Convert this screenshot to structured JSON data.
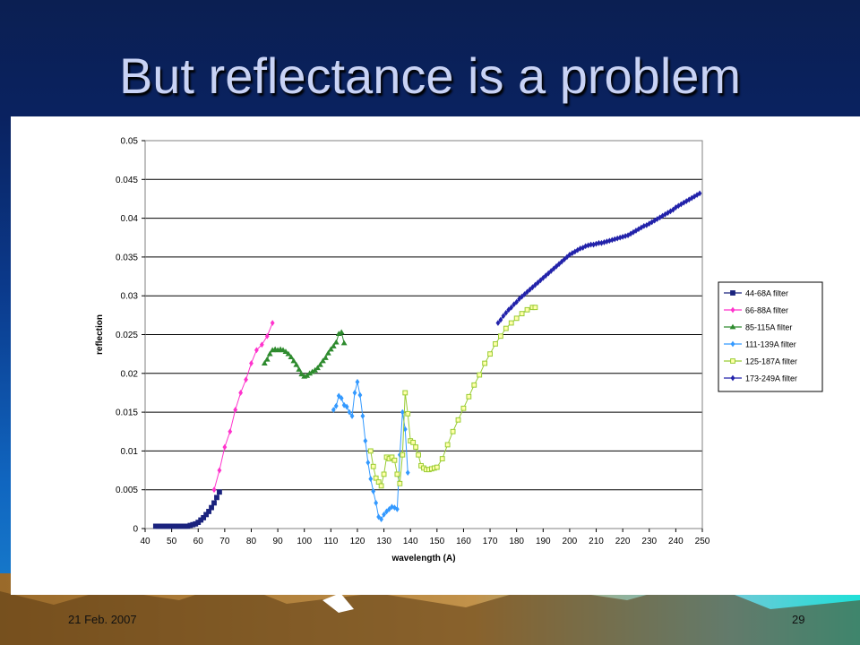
{
  "slide": {
    "title": "But reflectance is a problem",
    "footer_date": "21 Feb. 2007",
    "page_number": "29"
  },
  "colors": {
    "title_text": "#c9d3f5",
    "background_top": "#0b1f52",
    "background_bottom": "#1a84d0"
  },
  "chart_data": {
    "type": "line",
    "title": "",
    "xlabel": "wavelength (A)",
    "ylabel": "reflection",
    "xlim": [
      40,
      250
    ],
    "ylim": [
      0,
      0.05
    ],
    "x_ticks": [
      40,
      50,
      60,
      70,
      80,
      90,
      100,
      110,
      120,
      130,
      140,
      150,
      160,
      170,
      180,
      190,
      200,
      210,
      220,
      230,
      240,
      250
    ],
    "y_ticks": [
      0,
      0.005,
      0.01,
      0.015,
      0.02,
      0.025,
      0.03,
      0.035,
      0.04,
      0.045,
      0.05
    ],
    "y_tick_labels": [
      "0",
      "0.005",
      "0.01",
      "0.015",
      "0.02",
      "0.025",
      "0.03",
      "0.035",
      "0.04",
      "0.045",
      "0.05"
    ],
    "grid": "horizontal major lines",
    "legend_position": "right",
    "series": [
      {
        "name": "44-68A filter",
        "color": "#1a237e",
        "marker": "square",
        "x": [
          44,
          45,
          46,
          47,
          48,
          49,
          50,
          51,
          52,
          53,
          54,
          55,
          56,
          57,
          58,
          59,
          60,
          61,
          62,
          63,
          64,
          65,
          66,
          67,
          68
        ],
        "y": [
          0.0003,
          0.0003,
          0.0003,
          0.0003,
          0.0003,
          0.0003,
          0.0003,
          0.0003,
          0.0003,
          0.0003,
          0.0003,
          0.0003,
          0.0003,
          0.0004,
          0.0005,
          0.0006,
          0.0008,
          0.0011,
          0.0014,
          0.0018,
          0.0022,
          0.0027,
          0.0033,
          0.004,
          0.0047
        ]
      },
      {
        "name": "66-88A filter",
        "color": "#ff33cc",
        "marker": "diamond",
        "x": [
          66,
          68,
          70,
          72,
          74,
          76,
          78,
          80,
          82,
          84,
          86,
          88
        ],
        "y": [
          0.005,
          0.0075,
          0.0105,
          0.0125,
          0.0153,
          0.0175,
          0.0192,
          0.0213,
          0.023,
          0.0237,
          0.0248,
          0.0265
        ]
      },
      {
        "name": "85-115A filter",
        "color": "#2e8b2e",
        "marker": "triangle",
        "x": [
          85,
          86,
          87,
          88,
          89,
          90,
          91,
          92,
          93,
          94,
          95,
          96,
          97,
          98,
          99,
          100,
          101,
          102,
          103,
          104,
          105,
          106,
          107,
          108,
          109,
          110,
          111,
          112,
          113,
          114,
          115
        ],
        "y": [
          0.0213,
          0.0218,
          0.0225,
          0.023,
          0.0231,
          0.023,
          0.0231,
          0.023,
          0.0228,
          0.0225,
          0.0221,
          0.0216,
          0.0211,
          0.0205,
          0.0199,
          0.0196,
          0.0197,
          0.02,
          0.0202,
          0.0204,
          0.0207,
          0.0211,
          0.0216,
          0.022,
          0.0226,
          0.0231,
          0.0235,
          0.024,
          0.0251,
          0.0253,
          0.0239
        ]
      },
      {
        "name": "111-139A filter",
        "color": "#3399ff",
        "marker": "diamond",
        "x": [
          111,
          112,
          113,
          114,
          115,
          116,
          117,
          118,
          119,
          120,
          121,
          122,
          123,
          124,
          125,
          126,
          127,
          128,
          129,
          130,
          131,
          132,
          133,
          134,
          135,
          136,
          137,
          138,
          139
        ],
        "y": [
          0.0153,
          0.0158,
          0.0171,
          0.0168,
          0.0159,
          0.0157,
          0.015,
          0.0145,
          0.0175,
          0.0189,
          0.0172,
          0.0145,
          0.0113,
          0.0085,
          0.0064,
          0.0048,
          0.0033,
          0.0015,
          0.0012,
          0.0018,
          0.0022,
          0.0025,
          0.0028,
          0.0027,
          0.0025,
          0.0095,
          0.015,
          0.0128,
          0.0072
        ]
      },
      {
        "name": "125-187A filter",
        "color": "#99cc33",
        "marker": "square",
        "x": [
          125,
          126,
          127,
          128,
          129,
          130,
          131,
          132,
          133,
          134,
          135,
          136,
          137,
          138,
          139,
          140,
          141,
          142,
          143,
          144,
          145,
          146,
          147,
          148,
          149,
          150,
          152,
          154,
          156,
          158,
          160,
          162,
          164,
          166,
          168,
          170,
          172,
          174,
          176,
          178,
          180,
          182,
          184,
          186,
          187
        ],
        "y": [
          0.01,
          0.008,
          0.0065,
          0.006,
          0.0055,
          0.007,
          0.0092,
          0.009,
          0.0092,
          0.0088,
          0.007,
          0.0058,
          0.0095,
          0.0175,
          0.0148,
          0.0113,
          0.0111,
          0.0105,
          0.0095,
          0.0081,
          0.0078,
          0.0076,
          0.0076,
          0.0077,
          0.0078,
          0.0079,
          0.009,
          0.0108,
          0.0125,
          0.014,
          0.0155,
          0.017,
          0.0185,
          0.0198,
          0.0213,
          0.0225,
          0.0238,
          0.0248,
          0.0258,
          0.0265,
          0.0271,
          0.0277,
          0.0282,
          0.0285,
          0.0285
        ]
      },
      {
        "name": "173-249A filter",
        "color": "#2222aa",
        "marker": "diamond",
        "x": [
          173,
          174,
          175,
          176,
          177,
          178,
          179,
          180,
          181,
          182,
          183,
          184,
          185,
          186,
          187,
          188,
          189,
          190,
          191,
          192,
          193,
          194,
          195,
          196,
          197,
          198,
          199,
          200,
          201,
          202,
          203,
          204,
          205,
          206,
          207,
          208,
          209,
          210,
          211,
          212,
          213,
          214,
          215,
          216,
          217,
          218,
          219,
          220,
          221,
          222,
          223,
          224,
          225,
          226,
          227,
          228,
          229,
          230,
          231,
          232,
          233,
          234,
          235,
          236,
          237,
          238,
          239,
          240,
          241,
          242,
          243,
          244,
          245,
          246,
          247,
          248,
          249
        ],
        "y": [
          0.0265,
          0.0269,
          0.0274,
          0.0278,
          0.0282,
          0.0285,
          0.0289,
          0.0292,
          0.0296,
          0.0299,
          0.0302,
          0.0305,
          0.0308,
          0.0311,
          0.0314,
          0.0317,
          0.032,
          0.0323,
          0.0326,
          0.0329,
          0.0332,
          0.0335,
          0.0338,
          0.0341,
          0.0344,
          0.0347,
          0.035,
          0.0353,
          0.0355,
          0.0357,
          0.0359,
          0.0361,
          0.0362,
          0.0364,
          0.0365,
          0.0366,
          0.0366,
          0.0367,
          0.0368,
          0.0368,
          0.0369,
          0.037,
          0.0371,
          0.0372,
          0.0373,
          0.0374,
          0.0375,
          0.0376,
          0.0377,
          0.0378,
          0.038,
          0.0382,
          0.0384,
          0.0386,
          0.0388,
          0.039,
          0.0391,
          0.0393,
          0.0395,
          0.0397,
          0.0399,
          0.0401,
          0.0403,
          0.0405,
          0.0407,
          0.0409,
          0.0411,
          0.0414,
          0.0416,
          0.0418,
          0.042,
          0.0422,
          0.0424,
          0.0426,
          0.0428,
          0.043,
          0.0432
        ]
      }
    ]
  }
}
